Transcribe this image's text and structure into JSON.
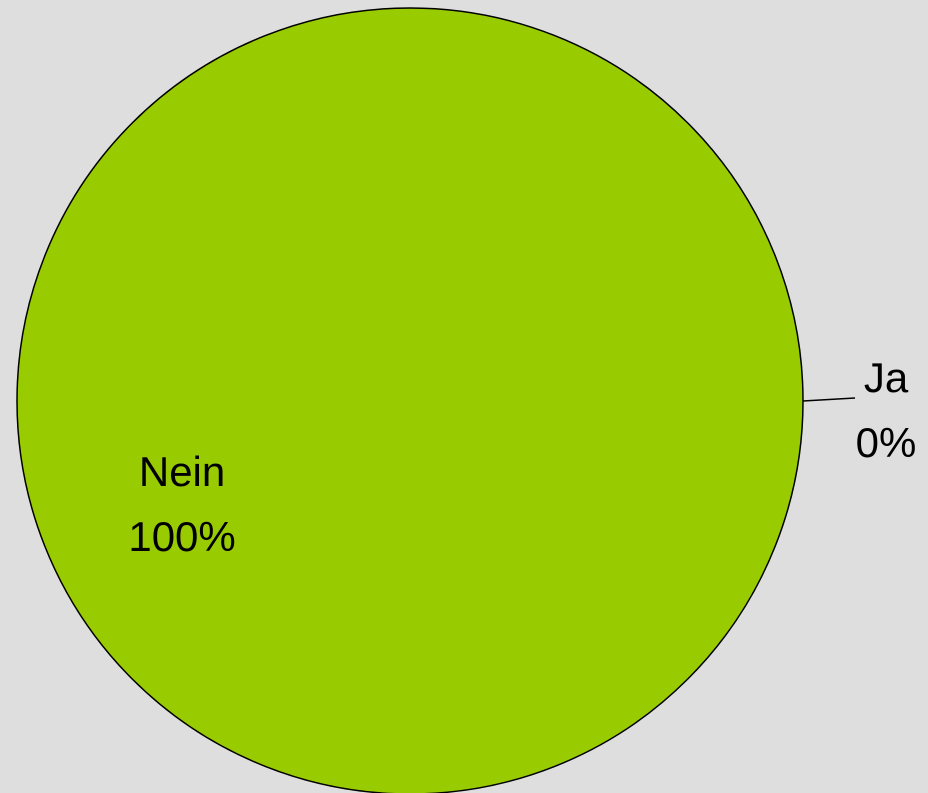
{
  "chart_data": {
    "type": "pie",
    "categories": [
      "Ja",
      "Nein"
    ],
    "values": [
      0,
      100
    ],
    "value_labels": [
      "0%",
      "100%"
    ],
    "colors": [
      "#99cc00",
      "#99cc00"
    ]
  }
}
